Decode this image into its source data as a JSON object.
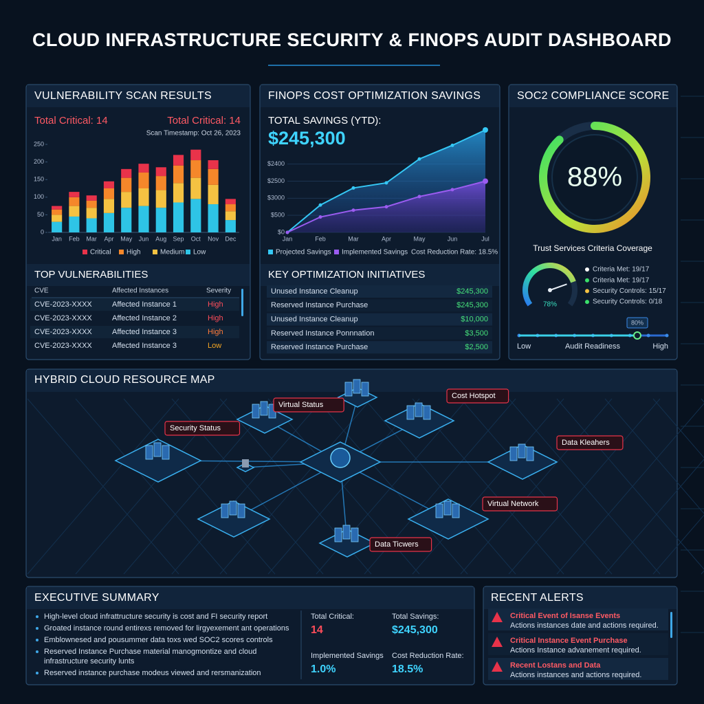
{
  "title": "CLOUD  INFRASTRUCTURE SECURITY & FINOPS AUDIT DASHBOARD",
  "vulnerability": {
    "title": "VULNERABILITY SCAN RESULTS",
    "total_critical_left": "Total Critical: 14",
    "total_critical_right": "Total Critical: 14",
    "scan_timestamp": "Scan Timestamp: Oct 26, 2023",
    "table_title": "TOP VULNERABILITIES",
    "table": {
      "columns": [
        "CVE",
        "Affected Instances",
        "Severity"
      ],
      "rows": [
        {
          "cve": "CVE-2023-XXXX",
          "instance": "Affected Instance 1",
          "severity": "High",
          "severity_color": "#ff4d5a"
        },
        {
          "cve": "CVE-2023-XXXX",
          "instance": "Affected Instance 2",
          "severity": "High",
          "severity_color": "#ff4d5a"
        },
        {
          "cve": "CVE-2023-XXXX",
          "instance": "Affected Instance 3",
          "severity": "High",
          "severity_color": "#ff7a3a"
        },
        {
          "cve": "CVE-2023-XXXX",
          "instance": "Affected Instance 3",
          "severity": "Low",
          "severity_color": "#f5a623"
        }
      ]
    }
  },
  "finops": {
    "title": "FINOPS COST OPTIMIZATION SAVINGS",
    "total_label": "TOTAL SAVINGS (YTD):",
    "total_value": "$245,300",
    "cost_reduction_legend": "Cost Reduction Rate: 18.5%",
    "initiatives_title": "KEY OPTIMIZATION INITIATIVES",
    "initiatives": [
      {
        "name": "Unused Instance Cleanup",
        "amount": "$245,300"
      },
      {
        "name": "Reserved Instance Purchase",
        "amount": "$245,300"
      },
      {
        "name": "Unused Instance Cleanup",
        "amount": "$10,000"
      },
      {
        "name": "Reserved Instance Ponnnation",
        "amount": "$3,500"
      },
      {
        "name": "Reserved Instance Purchase",
        "amount": "$2,500"
      }
    ]
  },
  "soc2": {
    "title": "SOC2 COMPLIANCE SCORE",
    "score": {
      "value": 88,
      "label": "88%"
    },
    "coverage_title": "Trust Services Criteria Coverage",
    "coverage_gauge": {
      "value": 78,
      "label": "78%"
    },
    "criteria": [
      {
        "text": "Criteria Met: 19/17",
        "color": "#ffffff"
      },
      {
        "text": "Criteria Met: 19/17",
        "color": "#3ae06a"
      },
      {
        "text": "Security Controls: 15/17",
        "color": "#f5c242"
      },
      {
        "text": "Security Controls: 0/18",
        "color": "#3ae06a"
      }
    ],
    "readiness": {
      "title": "Audit Readiness",
      "low": "Low",
      "high": "High",
      "value": 80,
      "label": "80%"
    }
  },
  "map": {
    "title": "HYBRID CLOUD RESOURCE MAP",
    "callouts": [
      "Security Status",
      "Virtual Status",
      "Cost Hotspot",
      "Data Kleahers",
      "Virtual Network",
      "Data Ticwers"
    ]
  },
  "summary": {
    "title": "EXECUTIVE SUMMARY",
    "bullets": [
      [
        "High-level cloud infrattructure security is cost and FI security report"
      ],
      [
        "Groated instance round entirexs removed for lirgyexement ant operations"
      ],
      [
        "Emblownesed and pousummer data toxs wed SOC2 scores controls"
      ],
      [
        "Reserved Instance Purchase material manogmontize and cloud",
        "infrastructure security lunts"
      ],
      [
        "Reserved instance purchase modeus viewed and rersmanization"
      ]
    ],
    "stats": [
      {
        "label": "Total Critical:",
        "value": "14",
        "color": "#ff4d5a"
      },
      {
        "label": "Total Savings:",
        "value": "$245,300",
        "color": "#3fd4ff"
      },
      {
        "label": "Implemented Savings",
        "value": "1.0%",
        "color": "#3fd4ff"
      },
      {
        "label": "Cost Reduction Rate:",
        "value": "18.5%",
        "color": "#3fd4ff"
      }
    ]
  },
  "alerts": {
    "title": "RECENT ALERTS",
    "items": [
      {
        "title": "Critical Event of Isanse Events",
        "text": "Actions instances date and actions required."
      },
      {
        "title": "Critical Instance Event Purchase",
        "text": "Actions Instance advanement required."
      },
      {
        "title": "Recent Lostans and Data",
        "text": "Actions instances and actions required."
      }
    ]
  },
  "chart_data": [
    {
      "type": "stacked_bar",
      "categories": [
        "Jan",
        "Feb",
        "Mar",
        "Apr",
        "May",
        "Jun",
        "Aug",
        "Sep",
        "Oct",
        "Nov",
        "Dec"
      ],
      "series": [
        {
          "name": "Critical",
          "color": "#e8334a",
          "values": [
            10,
            15,
            15,
            20,
            25,
            25,
            25,
            30,
            30,
            25,
            15
          ]
        },
        {
          "name": "High",
          "color": "#f5872a",
          "values": [
            15,
            25,
            20,
            30,
            40,
            45,
            40,
            50,
            50,
            45,
            20
          ]
        },
        {
          "name": "Medium",
          "color": "#f5c242",
          "values": [
            20,
            30,
            30,
            40,
            45,
            50,
            50,
            55,
            60,
            55,
            25
          ]
        },
        {
          "name": "Low",
          "color": "#2ec4e6",
          "values": [
            30,
            45,
            40,
            55,
            70,
            75,
            70,
            85,
            95,
            80,
            35
          ]
        }
      ],
      "ylim": [
        0,
        250
      ],
      "yticks": [
        0,
        50,
        100,
        150,
        200,
        250
      ],
      "grid": false
    },
    {
      "type": "area_line",
      "categories": [
        "Jan",
        "Feb",
        "Mar",
        "Apr",
        "May",
        "Jun",
        "Jul"
      ],
      "series": [
        {
          "name": "Projected Savings",
          "color": "#35c8f5",
          "values": [
            0,
            1.6,
            2.6,
            2.9,
            4.3,
            5.1,
            6.0
          ]
        },
        {
          "name": "Implemented Savings",
          "color": "#9b5cf0",
          "values": [
            0,
            0.9,
            1.3,
            1.5,
            2.1,
            2.5,
            3.0
          ]
        }
      ],
      "ylim": [
        0,
        6
      ],
      "yticks": [
        {
          "value": 0,
          "label": "$0"
        },
        {
          "value": 1,
          "label": "$500"
        },
        {
          "value": 2,
          "label": "$3000"
        },
        {
          "value": 3,
          "label": "$2500"
        },
        {
          "value": 4,
          "label": "$2400"
        }
      ],
      "grid": true
    }
  ]
}
